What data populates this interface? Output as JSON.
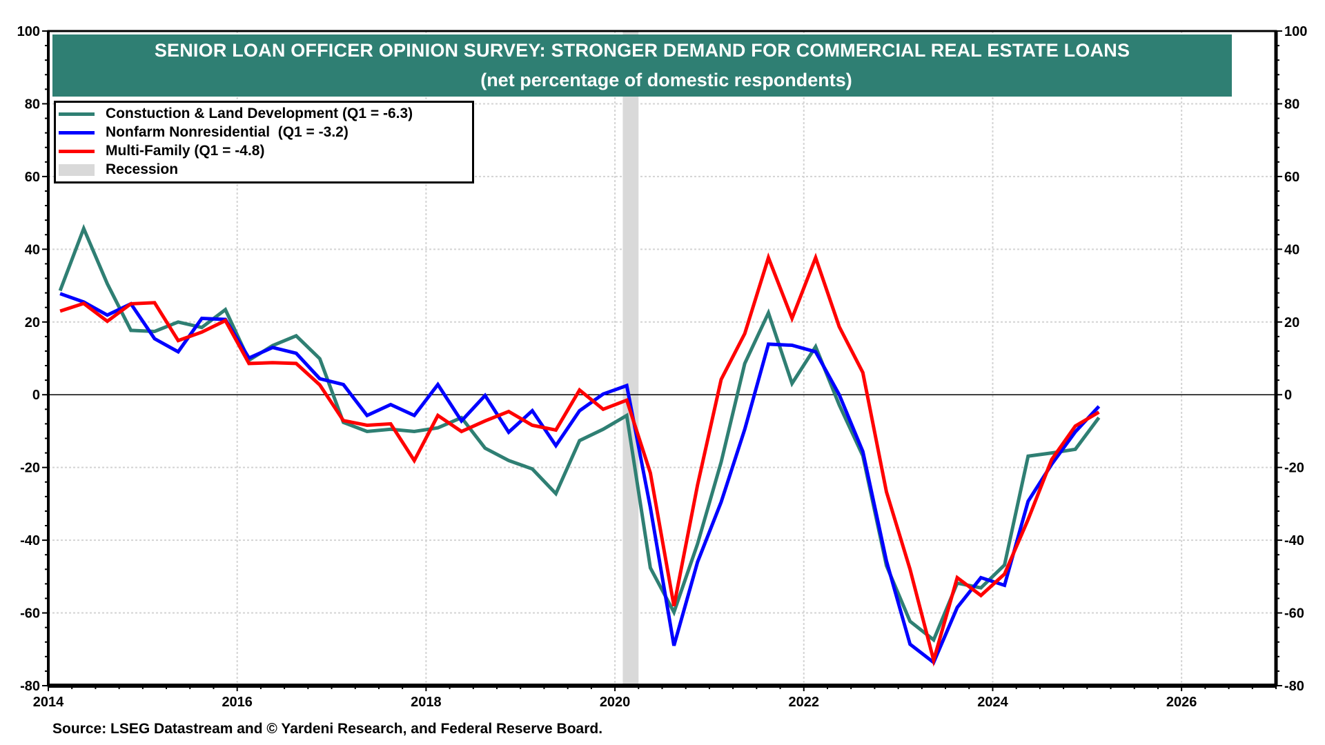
{
  "title": {
    "line1": "SENIOR LOAN OFFICER OPINION SURVEY: STRONGER DEMAND FOR COMMERCIAL REAL ESTATE LOANS",
    "line2": "(net percentage of domestic respondents)",
    "background_color": "#2f7f73"
  },
  "legend": {
    "items": [
      {
        "label": "Constuction & Land Development (Q1 = -6.3)",
        "color": "#2f7f73",
        "kind": "line"
      },
      {
        "label": "Nonfarm Nonresidential  (Q1 = -3.2)",
        "color": "#0000ff",
        "kind": "line"
      },
      {
        "label": "Multi-Family (Q1 = -4.8)",
        "color": "#ff0000",
        "kind": "line"
      },
      {
        "label": "Recession",
        "color": "#d9d9d9",
        "kind": "rect"
      }
    ]
  },
  "source": "Source: LSEG Datastream and © Yardeni Research, and Federal Reserve Board.",
  "chart_data": {
    "type": "line",
    "title": "SENIOR LOAN OFFICER OPINION SURVEY: STRONGER DEMAND FOR COMMERCIAL REAL ESTATE LOANS",
    "subtitle": "(net percentage of domestic respondents)",
    "xlabel": "",
    "ylabel": "",
    "xlim": [
      2014,
      2027
    ],
    "ylim": [
      -80,
      100
    ],
    "x_ticks": [
      2014,
      2016,
      2018,
      2020,
      2022,
      2024,
      2026
    ],
    "y_ticks": [
      -80,
      -60,
      -40,
      -20,
      0,
      20,
      40,
      60,
      80,
      100
    ],
    "y_axis_both_sides": true,
    "grid": true,
    "zero_line": true,
    "legend_position": "top-left",
    "frequency": "quarterly",
    "x_start": "2014 Q1",
    "x_start_decimal": 2014.125,
    "x_step": 0.25,
    "recessions": [
      {
        "start": 2020.083,
        "end": 2020.25
      }
    ],
    "series": [
      {
        "name": "Constuction & Land Development",
        "color": "#2f7f73",
        "latest": "Q1 = -6.3",
        "values": [
          28.6,
          45.7,
          30.5,
          17.7,
          17.4,
          20.0,
          18.5,
          23.4,
          9.5,
          13.5,
          16.2,
          9.9,
          -7.6,
          -10.1,
          -9.5,
          -10.1,
          -9.1,
          -6.3,
          -14.7,
          -18.1,
          -20.4,
          -27.2,
          -12.6,
          -9.5,
          -5.7,
          -47.6,
          -59.8,
          -41.0,
          -18.5,
          8.6,
          22.5,
          3.1,
          13.2,
          -2.8,
          -16.8,
          -47.0,
          -62.3,
          -67.4,
          -51.8,
          -53.1,
          -46.8,
          -16.9,
          -16.0,
          -15.0,
          -6.3
        ]
      },
      {
        "name": "Nonfarm Nonresidential",
        "color": "#0000ff",
        "latest": "Q1 = -3.2",
        "values": [
          27.8,
          25.5,
          21.9,
          25.0,
          15.4,
          11.8,
          21.0,
          20.7,
          10.1,
          13.0,
          11.4,
          4.4,
          2.8,
          -5.7,
          -2.7,
          -5.7,
          2.8,
          -7.2,
          -0.2,
          -10.3,
          -4.4,
          -14.0,
          -4.4,
          0.2,
          2.5,
          -31.0,
          -69.0,
          -46.0,
          -29.5,
          -9.5,
          13.9,
          13.6,
          11.8,
          0.0,
          -15.6,
          -45.7,
          -68.6,
          -73.6,
          -58.5,
          -50.3,
          -52.4,
          -29.3,
          -19.1,
          -10.2,
          -3.2
        ]
      },
      {
        "name": "Multi-Family",
        "color": "#ff0000",
        "latest": "Q1 = -4.8",
        "values": [
          23.0,
          25.1,
          20.2,
          25.0,
          25.3,
          14.9,
          17.2,
          20.4,
          8.6,
          8.8,
          8.6,
          2.7,
          -7.1,
          -8.4,
          -8.0,
          -18.1,
          -5.7,
          -10.1,
          -7.2,
          -4.6,
          -8.4,
          -9.7,
          1.3,
          -4.0,
          -1.5,
          -21.5,
          -58.1,
          -24.8,
          4.2,
          16.8,
          37.7,
          21.0,
          37.7,
          18.7,
          6.1,
          -26.7,
          -48.0,
          -73.0,
          -50.3,
          -55.2,
          -49.3,
          -34.3,
          -17.8,
          -8.6,
          -4.8
        ]
      }
    ]
  }
}
